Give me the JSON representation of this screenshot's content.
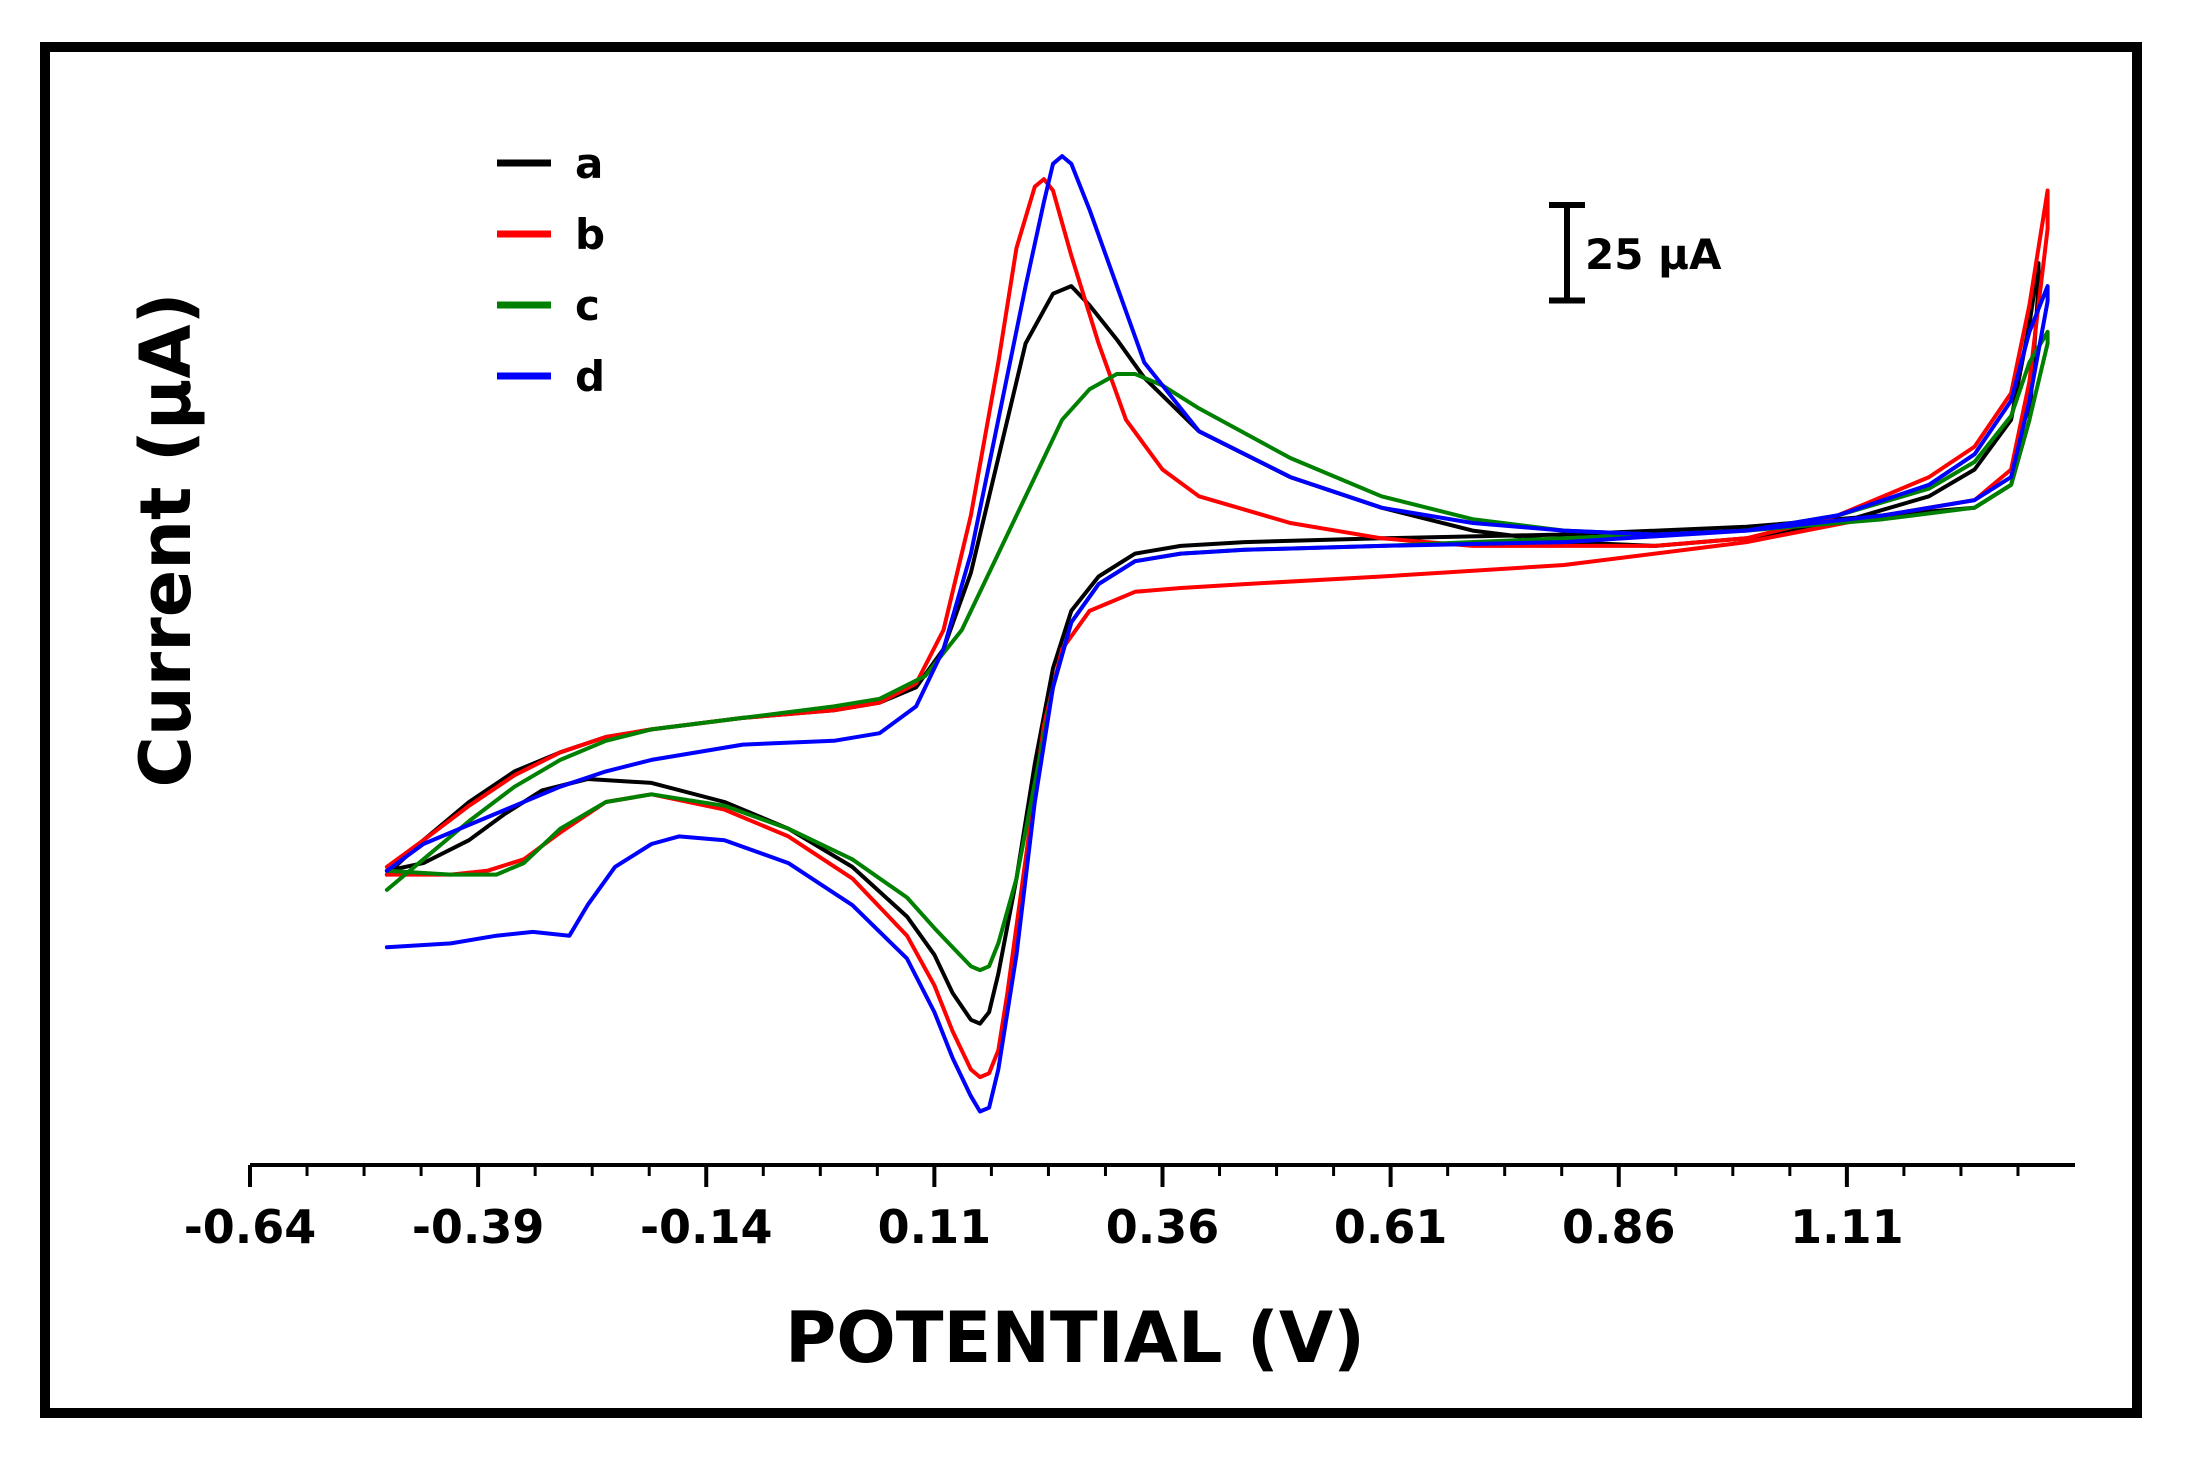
{
  "chart_data": {
    "type": "line",
    "title": "",
    "xlabel": "POTENTIAL (V)",
    "ylabel": "Current (µA)",
    "xlim": [
      -0.64,
      1.36
    ],
    "ylim": [
      -140,
      140
    ],
    "x_ticks": [
      "-0.64",
      "-0.39",
      "-0.14",
      "0.11",
      "0.36",
      "0.61",
      "0.86",
      "1.11"
    ],
    "x_tick_values": [
      -0.64,
      -0.39,
      -0.14,
      0.11,
      0.36,
      0.61,
      0.86,
      1.11
    ],
    "scale_bar": {
      "label": "25 µA",
      "value": 25
    },
    "legend": {
      "placement": "top-left",
      "entries": [
        {
          "label": "a",
          "color": "#000000"
        },
        {
          "label": "b",
          "color": "#ff0000"
        },
        {
          "label": "c",
          "color": "#008000"
        },
        {
          "label": "d",
          "color": "#0000ff"
        }
      ]
    },
    "series": [
      {
        "name": "a",
        "color": "#000000",
        "points": [
          [
            -0.49,
            -64
          ],
          [
            -0.45,
            -55
          ],
          [
            -0.4,
            -45
          ],
          [
            -0.35,
            -37
          ],
          [
            -0.3,
            -32
          ],
          [
            -0.25,
            -28
          ],
          [
            -0.2,
            -26
          ],
          [
            -0.1,
            -23
          ],
          [
            0.0,
            -21
          ],
          [
            0.05,
            -19
          ],
          [
            0.09,
            -15
          ],
          [
            0.12,
            -5
          ],
          [
            0.15,
            15
          ],
          [
            0.18,
            45
          ],
          [
            0.21,
            75
          ],
          [
            0.24,
            88
          ],
          [
            0.26,
            90
          ],
          [
            0.28,
            85
          ],
          [
            0.31,
            76
          ],
          [
            0.34,
            66
          ],
          [
            0.4,
            52
          ],
          [
            0.5,
            40
          ],
          [
            0.6,
            32
          ],
          [
            0.7,
            26
          ],
          [
            0.8,
            23
          ],
          [
            0.9,
            22
          ],
          [
            1.0,
            24
          ],
          [
            1.1,
            28
          ],
          [
            1.2,
            35
          ],
          [
            1.25,
            42
          ],
          [
            1.29,
            55
          ],
          [
            1.31,
            80
          ],
          [
            1.32,
            96
          ],
          [
            1.32,
            90
          ],
          [
            1.31,
            55
          ],
          [
            1.29,
            38
          ],
          [
            1.25,
            32
          ],
          [
            1.15,
            30
          ],
          [
            1.0,
            27
          ],
          [
            0.8,
            25
          ],
          [
            0.6,
            24
          ],
          [
            0.45,
            23
          ],
          [
            0.38,
            22
          ],
          [
            0.33,
            20
          ],
          [
            0.29,
            14
          ],
          [
            0.26,
            5
          ],
          [
            0.24,
            -10
          ],
          [
            0.22,
            -35
          ],
          [
            0.2,
            -65
          ],
          [
            0.18,
            -90
          ],
          [
            0.17,
            -100
          ],
          [
            0.16,
            -103
          ],
          [
            0.15,
            -102
          ],
          [
            0.13,
            -95
          ],
          [
            0.11,
            -85
          ],
          [
            0.08,
            -75
          ],
          [
            0.02,
            -62
          ],
          [
            -0.05,
            -52
          ],
          [
            -0.12,
            -45
          ],
          [
            -0.2,
            -40
          ],
          [
            -0.27,
            -39
          ],
          [
            -0.32,
            -42
          ],
          [
            -0.36,
            -48
          ],
          [
            -0.4,
            -55
          ],
          [
            -0.45,
            -61
          ],
          [
            -0.49,
            -63
          ]
        ]
      },
      {
        "name": "b",
        "color": "#ff0000",
        "points": [
          [
            -0.49,
            -62
          ],
          [
            -0.45,
            -55
          ],
          [
            -0.4,
            -46
          ],
          [
            -0.35,
            -38
          ],
          [
            -0.3,
            -32
          ],
          [
            -0.25,
            -28
          ],
          [
            -0.2,
            -26
          ],
          [
            -0.1,
            -23
          ],
          [
            0.0,
            -21
          ],
          [
            0.05,
            -19
          ],
          [
            0.09,
            -14
          ],
          [
            0.12,
            0
          ],
          [
            0.15,
            30
          ],
          [
            0.18,
            70
          ],
          [
            0.2,
            100
          ],
          [
            0.22,
            116
          ],
          [
            0.23,
            118
          ],
          [
            0.24,
            115
          ],
          [
            0.26,
            98
          ],
          [
            0.29,
            75
          ],
          [
            0.32,
            55
          ],
          [
            0.36,
            42
          ],
          [
            0.4,
            35
          ],
          [
            0.5,
            28
          ],
          [
            0.6,
            24
          ],
          [
            0.7,
            22
          ],
          [
            0.8,
            22
          ],
          [
            0.9,
            22
          ],
          [
            1.0,
            24
          ],
          [
            1.1,
            30
          ],
          [
            1.2,
            40
          ],
          [
            1.25,
            48
          ],
          [
            1.29,
            62
          ],
          [
            1.31,
            85
          ],
          [
            1.33,
            115
          ],
          [
            1.33,
            105
          ],
          [
            1.31,
            65
          ],
          [
            1.29,
            42
          ],
          [
            1.25,
            34
          ],
          [
            1.15,
            30
          ],
          [
            1.0,
            23
          ],
          [
            0.8,
            17
          ],
          [
            0.6,
            14
          ],
          [
            0.45,
            12
          ],
          [
            0.38,
            11
          ],
          [
            0.33,
            10
          ],
          [
            0.28,
            5
          ],
          [
            0.25,
            -5
          ],
          [
            0.23,
            -25
          ],
          [
            0.21,
            -60
          ],
          [
            0.19,
            -95
          ],
          [
            0.18,
            -110
          ],
          [
            0.17,
            -116
          ],
          [
            0.16,
            -117
          ],
          [
            0.15,
            -115
          ],
          [
            0.13,
            -105
          ],
          [
            0.11,
            -93
          ],
          [
            0.08,
            -80
          ],
          [
            0.02,
            -65
          ],
          [
            -0.05,
            -54
          ],
          [
            -0.12,
            -47
          ],
          [
            -0.2,
            -43
          ],
          [
            -0.25,
            -45
          ],
          [
            -0.3,
            -53
          ],
          [
            -0.34,
            -60
          ],
          [
            -0.38,
            -63
          ],
          [
            -0.42,
            -64
          ],
          [
            -0.49,
            -64
          ]
        ]
      },
      {
        "name": "c",
        "color": "#008000",
        "points": [
          [
            -0.49,
            -68
          ],
          [
            -0.45,
            -60
          ],
          [
            -0.4,
            -50
          ],
          [
            -0.35,
            -41
          ],
          [
            -0.3,
            -34
          ],
          [
            -0.25,
            -29
          ],
          [
            -0.2,
            -26
          ],
          [
            -0.1,
            -23
          ],
          [
            0.0,
            -20
          ],
          [
            0.05,
            -18
          ],
          [
            0.1,
            -12
          ],
          [
            0.14,
            0
          ],
          [
            0.18,
            20
          ],
          [
            0.22,
            40
          ],
          [
            0.25,
            55
          ],
          [
            0.28,
            63
          ],
          [
            0.31,
            67
          ],
          [
            0.33,
            67
          ],
          [
            0.36,
            64
          ],
          [
            0.4,
            58
          ],
          [
            0.5,
            45
          ],
          [
            0.6,
            35
          ],
          [
            0.7,
            29
          ],
          [
            0.8,
            26
          ],
          [
            0.9,
            25
          ],
          [
            1.0,
            26
          ],
          [
            1.1,
            30
          ],
          [
            1.2,
            37
          ],
          [
            1.25,
            44
          ],
          [
            1.29,
            56
          ],
          [
            1.31,
            70
          ],
          [
            1.33,
            78
          ],
          [
            1.33,
            75
          ],
          [
            1.31,
            55
          ],
          [
            1.29,
            38
          ],
          [
            1.25,
            32
          ],
          [
            1.15,
            29
          ],
          [
            1.0,
            26
          ],
          [
            0.8,
            24
          ],
          [
            0.6,
            22
          ],
          [
            0.45,
            21
          ],
          [
            0.38,
            20
          ],
          [
            0.33,
            18
          ],
          [
            0.29,
            12
          ],
          [
            0.26,
            2
          ],
          [
            0.24,
            -15
          ],
          [
            0.22,
            -40
          ],
          [
            0.2,
            -65
          ],
          [
            0.18,
            -82
          ],
          [
            0.17,
            -88
          ],
          [
            0.16,
            -89
          ],
          [
            0.15,
            -88
          ],
          [
            0.13,
            -83
          ],
          [
            0.11,
            -78
          ],
          [
            0.08,
            -70
          ],
          [
            0.02,
            -60
          ],
          [
            -0.05,
            -52
          ],
          [
            -0.12,
            -46
          ],
          [
            -0.2,
            -43
          ],
          [
            -0.25,
            -45
          ],
          [
            -0.3,
            -52
          ],
          [
            -0.34,
            -61
          ],
          [
            -0.37,
            -64
          ],
          [
            -0.42,
            -64
          ],
          [
            -0.49,
            -63
          ]
        ]
      },
      {
        "name": "d",
        "color": "#0000ff",
        "points": [
          [
            -0.49,
            -63
          ],
          [
            -0.45,
            -56
          ],
          [
            -0.4,
            -51
          ],
          [
            -0.35,
            -46
          ],
          [
            -0.3,
            -41
          ],
          [
            -0.25,
            -37
          ],
          [
            -0.2,
            -34
          ],
          [
            -0.1,
            -30
          ],
          [
            0.0,
            -29
          ],
          [
            0.05,
            -27
          ],
          [
            0.09,
            -20
          ],
          [
            0.12,
            -5
          ],
          [
            0.15,
            20
          ],
          [
            0.18,
            55
          ],
          [
            0.21,
            90
          ],
          [
            0.23,
            112
          ],
          [
            0.24,
            122
          ],
          [
            0.25,
            124
          ],
          [
            0.26,
            122
          ],
          [
            0.28,
            110
          ],
          [
            0.31,
            90
          ],
          [
            0.34,
            70
          ],
          [
            0.4,
            52
          ],
          [
            0.5,
            40
          ],
          [
            0.6,
            32
          ],
          [
            0.7,
            28
          ],
          [
            0.8,
            26
          ],
          [
            0.9,
            25
          ],
          [
            1.0,
            26
          ],
          [
            1.1,
            30
          ],
          [
            1.2,
            38
          ],
          [
            1.25,
            46
          ],
          [
            1.29,
            60
          ],
          [
            1.31,
            78
          ],
          [
            1.33,
            90
          ],
          [
            1.33,
            86
          ],
          [
            1.31,
            60
          ],
          [
            1.29,
            40
          ],
          [
            1.25,
            34
          ],
          [
            1.15,
            30
          ],
          [
            1.0,
            26
          ],
          [
            0.8,
            23
          ],
          [
            0.6,
            22
          ],
          [
            0.45,
            21
          ],
          [
            0.38,
            20
          ],
          [
            0.33,
            18
          ],
          [
            0.29,
            12
          ],
          [
            0.26,
            2
          ],
          [
            0.24,
            -15
          ],
          [
            0.22,
            -45
          ],
          [
            0.2,
            -85
          ],
          [
            0.18,
            -115
          ],
          [
            0.17,
            -125
          ],
          [
            0.16,
            -126
          ],
          [
            0.15,
            -122
          ],
          [
            0.13,
            -112
          ],
          [
            0.11,
            -100
          ],
          [
            0.08,
            -86
          ],
          [
            0.02,
            -72
          ],
          [
            -0.05,
            -61
          ],
          [
            -0.12,
            -55
          ],
          [
            -0.17,
            -54
          ],
          [
            -0.2,
            -56
          ],
          [
            -0.24,
            -62
          ],
          [
            -0.27,
            -72
          ],
          [
            -0.29,
            -80
          ],
          [
            -0.33,
            -79
          ],
          [
            -0.37,
            -80
          ],
          [
            -0.42,
            -82
          ],
          [
            -0.49,
            -83
          ]
        ]
      }
    ]
  }
}
